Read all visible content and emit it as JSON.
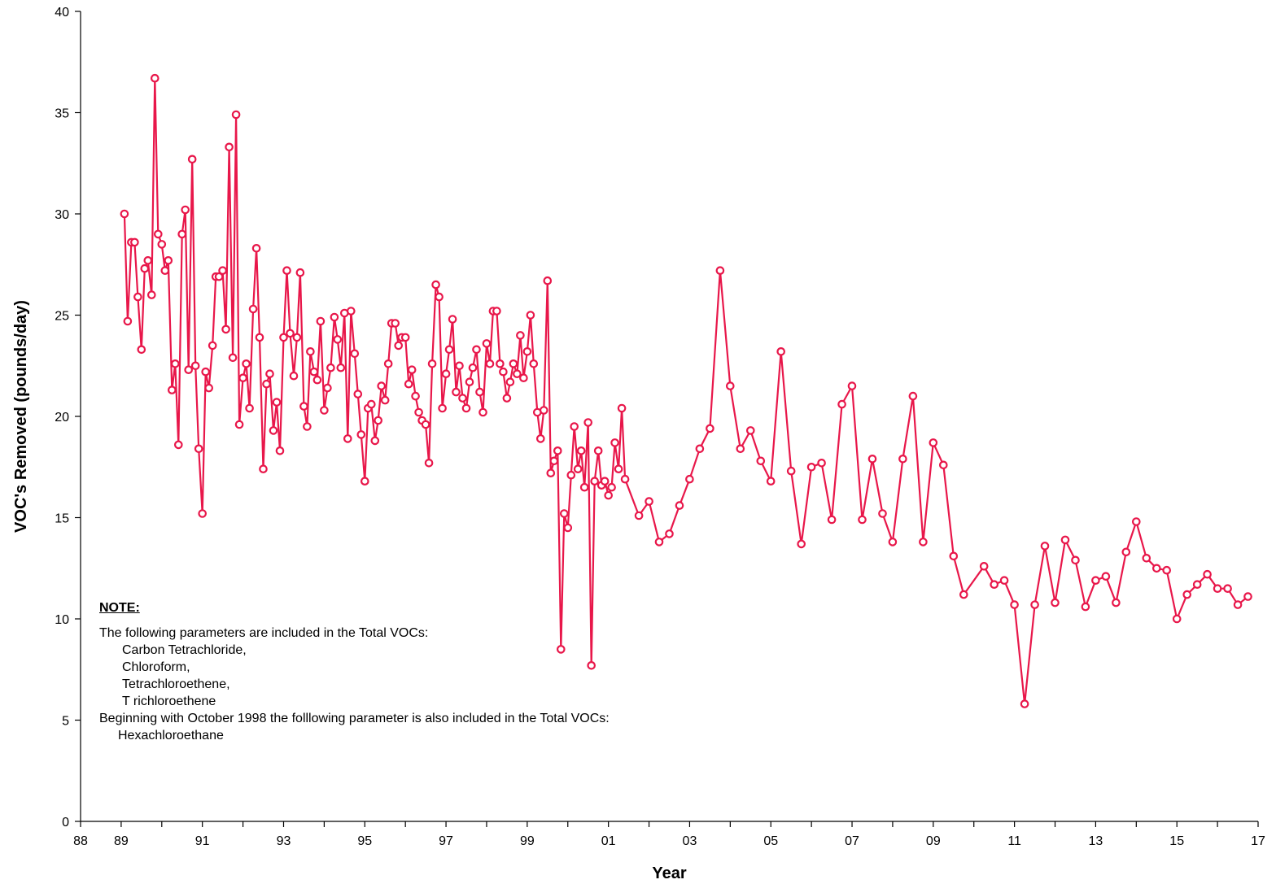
{
  "chart_data": {
    "type": "line",
    "title": "",
    "xlabel": "Year",
    "ylabel": "VOC's Removed   (pounds/day)",
    "xlim": [
      1988,
      2017
    ],
    "ylim": [
      0,
      40
    ],
    "x_ticks": [
      1988,
      1989,
      1991,
      1993,
      1995,
      1997,
      1999,
      2001,
      2003,
      2005,
      2007,
      2009,
      2011,
      2013,
      2015,
      2017
    ],
    "x_tick_labels": [
      "88",
      "89",
      "91",
      "93",
      "95",
      "97",
      "99",
      "01",
      "03",
      "05",
      "07",
      "09",
      "11",
      "13",
      "15",
      "17"
    ],
    "y_ticks": [
      0,
      5,
      10,
      15,
      20,
      25,
      30,
      35,
      40
    ],
    "y_tick_labels": [
      "0",
      "5",
      "10",
      "15",
      "20",
      "25",
      "30",
      "35",
      "40"
    ],
    "line_color": "#e8174a",
    "series": [
      {
        "x": [
          1989.08,
          1989.16,
          1989.25,
          1989.33,
          1989.41,
          1989.5,
          1989.58,
          1989.66,
          1989.75,
          1989.83,
          1989.91,
          1990.0,
          1990.08,
          1990.16,
          1990.25,
          1990.33,
          1990.41,
          1990.5,
          1990.58,
          1990.66,
          1990.75,
          1990.83,
          1990.91,
          1991.0,
          1991.08,
          1991.16,
          1991.25,
          1991.33,
          1991.41,
          1991.5,
          1991.58,
          1991.66,
          1991.75,
          1991.83,
          1991.91,
          1992.0,
          1992.08,
          1992.16,
          1992.25,
          1992.33,
          1992.41,
          1992.5,
          1992.58,
          1992.66,
          1992.75,
          1992.83,
          1992.91,
          1993.0,
          1993.08,
          1993.16,
          1993.25,
          1993.33,
          1993.41,
          1993.5,
          1993.58,
          1993.66,
          1993.75,
          1993.83,
          1993.91,
          1994.0,
          1994.08,
          1994.16,
          1994.25,
          1994.33,
          1994.41,
          1994.5,
          1994.58,
          1994.66,
          1994.75,
          1994.83,
          1994.91,
          1995.0,
          1995.08,
          1995.16,
          1995.25,
          1995.33,
          1995.41,
          1995.5,
          1995.58,
          1995.66,
          1995.75,
          1995.83,
          1995.91,
          1996.0,
          1996.08,
          1996.16,
          1996.25,
          1996.33,
          1996.41,
          1996.5,
          1996.58,
          1996.66,
          1996.75,
          1996.83,
          1996.91,
          1997.0,
          1997.08,
          1997.16,
          1997.25,
          1997.33,
          1997.41,
          1997.5,
          1997.58,
          1997.66,
          1997.75,
          1997.83,
          1997.91,
          1998.0,
          1998.08,
          1998.16,
          1998.25,
          1998.33,
          1998.41,
          1998.5,
          1998.58,
          1998.66,
          1998.75,
          1998.83,
          1998.91,
          1999.0,
          1999.08,
          1999.16,
          1999.25,
          1999.33,
          1999.41,
          1999.5,
          1999.58,
          1999.66,
          1999.75,
          1999.83,
          1999.91,
          2000.0,
          2000.08,
          2000.16,
          2000.25,
          2000.33,
          2000.41,
          2000.5,
          2000.58,
          2000.66,
          2000.75,
          2000.83,
          2000.91,
          2001.0,
          2001.08,
          2001.16,
          2001.25,
          2001.33,
          2001.41,
          2001.75,
          2002.0,
          2002.25,
          2002.5,
          2002.75,
          2003.0,
          2003.25,
          2003.5,
          2003.75,
          2004.0,
          2004.25,
          2004.5,
          2004.75,
          2005.0,
          2005.25,
          2005.5,
          2005.75,
          2006.0,
          2006.25,
          2006.5,
          2006.75,
          2007.0,
          2007.25,
          2007.5,
          2007.75,
          2008.0,
          2008.25,
          2008.5,
          2008.75,
          2009.0,
          2009.25,
          2009.5,
          2009.75,
          2010.25,
          2010.5,
          2010.75,
          2011.0,
          2011.25,
          2011.5,
          2011.75,
          2012.0,
          2012.25,
          2012.5,
          2012.75,
          2013.0,
          2013.25,
          2013.5,
          2013.75,
          2014.0,
          2014.25,
          2014.5,
          2014.75,
          2015.0,
          2015.25,
          2015.5,
          2015.75,
          2016.0,
          2016.25,
          2016.5,
          2016.75
        ],
        "y": [
          30.0,
          24.7,
          28.6,
          28.6,
          25.9,
          23.3,
          27.3,
          27.7,
          26.0,
          36.7,
          29.0,
          28.5,
          27.2,
          27.7,
          21.3,
          22.6,
          18.6,
          29.0,
          30.2,
          22.3,
          32.7,
          22.5,
          18.4,
          15.2,
          22.2,
          21.4,
          23.5,
          26.9,
          26.9,
          27.2,
          24.3,
          33.3,
          22.9,
          34.9,
          19.6,
          21.9,
          22.6,
          20.4,
          25.3,
          28.3,
          23.9,
          17.4,
          21.6,
          22.1,
          19.3,
          20.7,
          18.3,
          23.9,
          27.2,
          24.1,
          22.0,
          23.9,
          27.1,
          20.5,
          19.5,
          23.2,
          22.2,
          21.8,
          24.7,
          20.3,
          21.4,
          22.4,
          24.9,
          23.8,
          22.4,
          25.1,
          18.9,
          25.2,
          23.1,
          21.1,
          19.1,
          16.8,
          20.4,
          20.6,
          18.8,
          19.8,
          21.5,
          20.8,
          22.6,
          24.6,
          24.6,
          23.5,
          23.9,
          23.9,
          21.6,
          22.3,
          21.0,
          20.2,
          19.8,
          19.6,
          17.7,
          22.6,
          26.5,
          25.9,
          20.4,
          22.1,
          23.3,
          24.8,
          21.2,
          22.5,
          20.9,
          20.4,
          21.7,
          22.4,
          23.3,
          21.2,
          20.2,
          23.6,
          22.6,
          25.2,
          25.2,
          22.6,
          22.2,
          20.9,
          21.7,
          22.6,
          22.1,
          24.0,
          21.9,
          23.2,
          25.0,
          22.6,
          20.2,
          18.9,
          20.3,
          26.7,
          17.2,
          17.8,
          18.3,
          8.5,
          15.2,
          14.5,
          17.1,
          19.5,
          17.4,
          18.3,
          16.5,
          19.7,
          7.7,
          16.8,
          18.3,
          16.6,
          16.8,
          16.1,
          16.5,
          18.7,
          17.4,
          20.4,
          16.9,
          15.1,
          15.8,
          13.8,
          14.2,
          15.6,
          16.9,
          18.4,
          19.4,
          27.2,
          21.5,
          18.4,
          19.3,
          17.8,
          16.8,
          23.2,
          17.3,
          13.7,
          17.5,
          17.7,
          14.9,
          20.6,
          21.5,
          14.9,
          17.9,
          15.2,
          13.8,
          17.9,
          21.0,
          13.8,
          18.7,
          17.6,
          13.1,
          11.2,
          12.6,
          11.7,
          11.9,
          10.7,
          5.8,
          10.7,
          13.6,
          10.8,
          13.9,
          12.9,
          10.6,
          11.9,
          12.1,
          10.8,
          13.3,
          14.8,
          13.0,
          12.5,
          12.4,
          10.0,
          11.2,
          11.7,
          12.2,
          11.5,
          11.5,
          10.7,
          11.1
        ]
      }
    ]
  },
  "note": {
    "title": "NOTE:",
    "intro": "The following parameters are included in the Total VOCs:",
    "items": [
      "Carbon Tetrachloride,",
      "Chloroform,",
      "Tetrachloroethene,",
      "T richloroethene"
    ],
    "extra_intro": "Beginning with October 1998 the folllowing parameter is also included in the Total VOCs:",
    "extra_item": "Hexachloroethane"
  }
}
